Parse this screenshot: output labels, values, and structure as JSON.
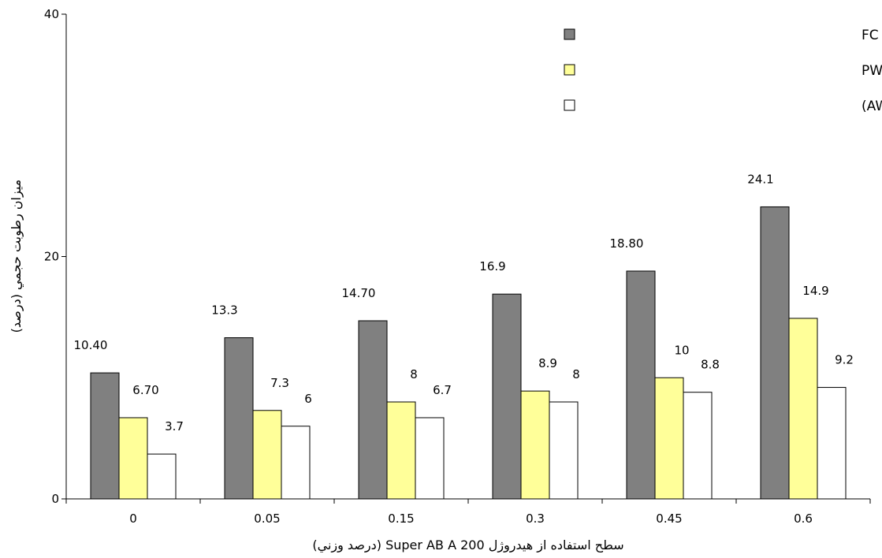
{
  "chart_data": {
    "type": "bar",
    "title": "",
    "xlabel": "سطح استفاده از هيدروژل Super AB A 200 (درصد وزني)",
    "ylabel": "ميزان رطوبت حجمي (درصد)",
    "ylim": [
      0,
      40
    ],
    "yticks": [
      "0",
      "20",
      "40"
    ],
    "categories": [
      "0",
      "0.05",
      "0.15",
      "0.3",
      "0.45",
      "0.6"
    ],
    "grid": false,
    "legend_position": "top-right",
    "series": [
      {
        "name": "ميزان رطوبت حجمي در حد FC",
        "color": "#808080",
        "values": [
          10.4,
          13.3,
          14.7,
          16.9,
          18.8,
          24.1
        ],
        "labels": [
          "10.40",
          "13.3",
          "14.70",
          "16.9",
          "18.80",
          "24.1"
        ]
      },
      {
        "name": "ميزان رطوبت حجمي در حد PWP",
        "color": "#ffff99",
        "values": [
          6.7,
          7.3,
          8,
          8.9,
          10,
          14.9
        ],
        "labels": [
          "6.70",
          "7.3",
          "8",
          "8.9",
          "10",
          "14.9"
        ]
      },
      {
        "name": "ميزان آب قابل استفاده (AW)",
        "color": "#ffffff",
        "values": [
          3.7,
          6,
          6.7,
          8,
          8.8,
          9.2
        ],
        "labels": [
          "3.7",
          "6",
          "6.7",
          "8",
          "8.8",
          "9.2"
        ]
      }
    ]
  }
}
